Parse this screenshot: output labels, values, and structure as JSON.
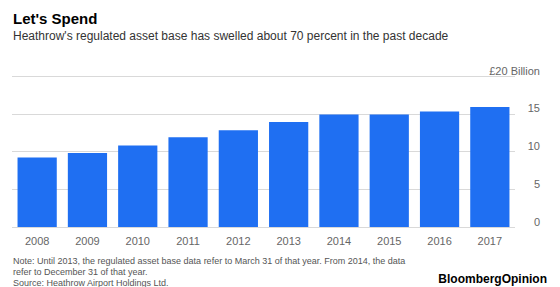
{
  "chart_data": {
    "type": "bar",
    "title": "Let's Spend",
    "subtitle": "Heathrow's regulated asset base has swelled about 70 percent in the past decade",
    "note": "Note: Until 2013, the regulated asset base data refer to March 31 of that year. From 2014, the data refer to December 31 of that year.",
    "source": "Source: Heathrow Airport Holdings Ltd.",
    "brand": "BloombergOpinion",
    "categories": [
      "2008",
      "2009",
      "2010",
      "2011",
      "2012",
      "2013",
      "2014",
      "2015",
      "2016",
      "2017"
    ],
    "values": [
      9.2,
      9.8,
      10.8,
      11.9,
      12.8,
      13.9,
      14.9,
      14.9,
      15.3,
      15.9
    ],
    "color": "#1f6ff2",
    "ylim": [
      0,
      20
    ],
    "yticks": [
      0,
      5,
      10,
      15,
      {
        "value": 20,
        "label": "£20 Billion"
      }
    ],
    "grid": true
  }
}
